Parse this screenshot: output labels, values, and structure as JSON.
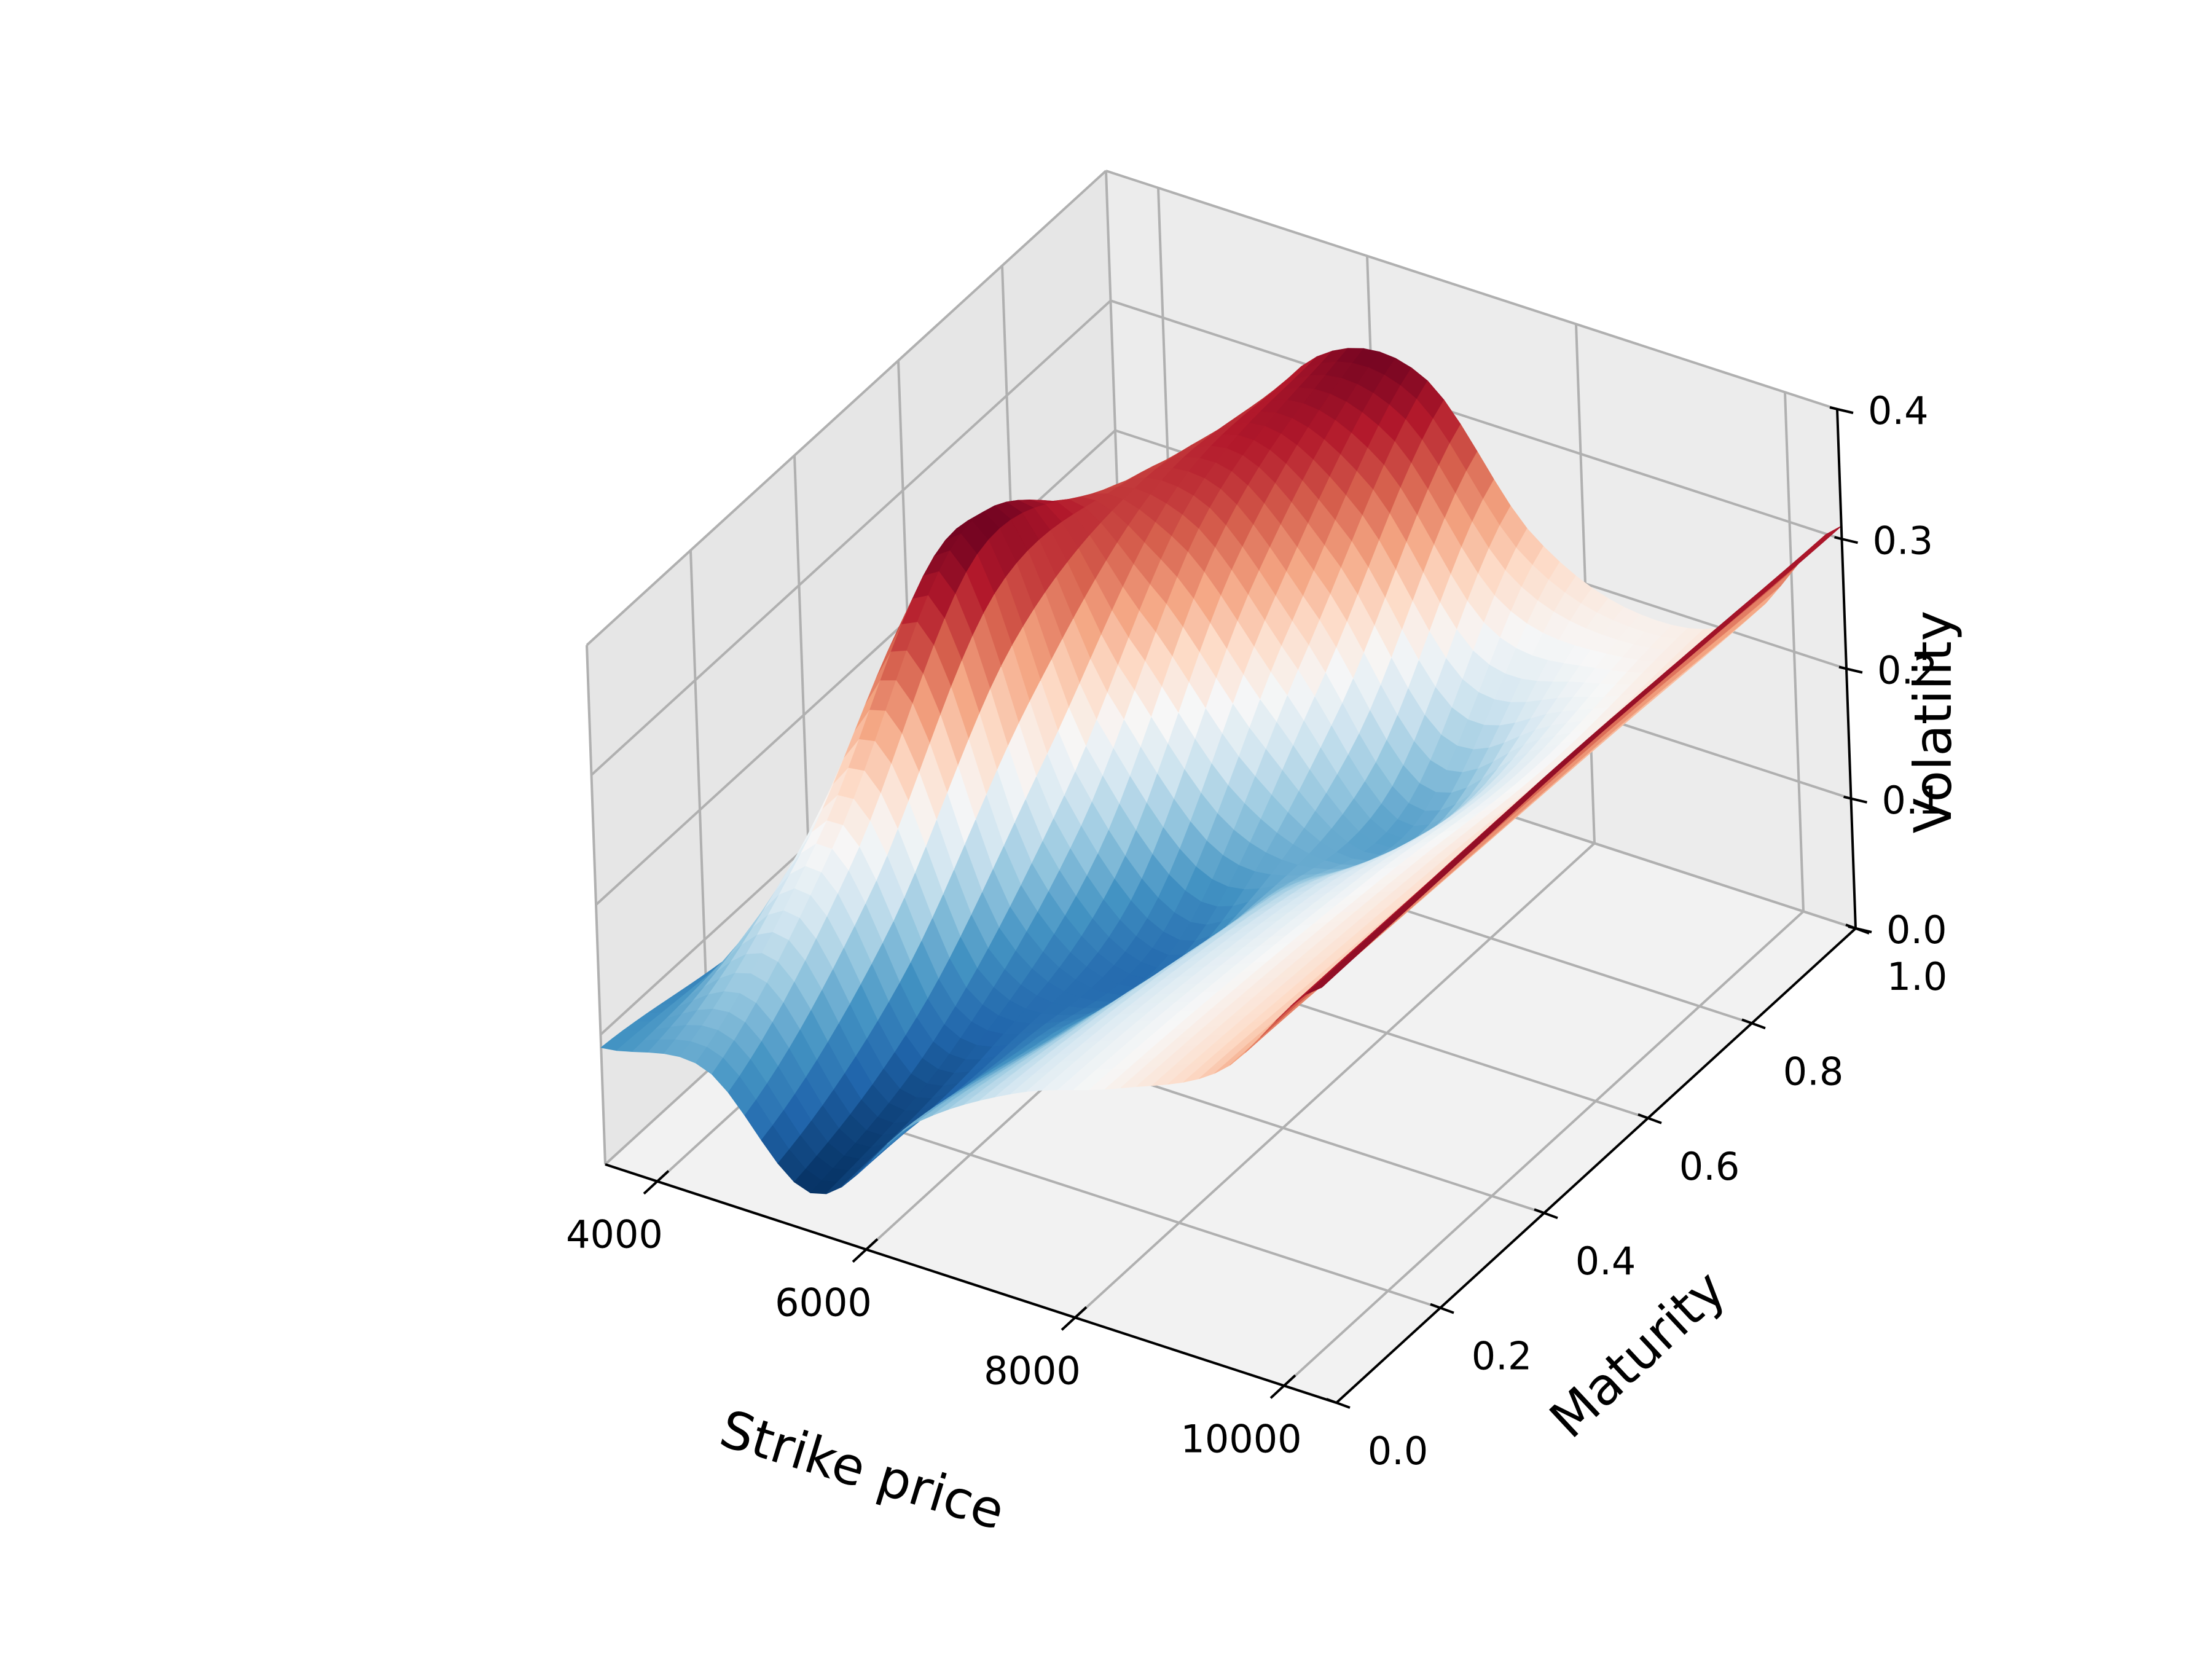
{
  "chart_data": {
    "type": "surface3d",
    "title": "",
    "xlabel": "Strike price",
    "ylabel": "Maturity",
    "zlabel": "Volatility",
    "xlim": [
      3500,
      10500
    ],
    "ylim": [
      0.0,
      1.0
    ],
    "zlim": [
      0.0,
      0.4
    ],
    "x_ticks": [
      4000,
      6000,
      8000,
      10000
    ],
    "y_ticks": [
      0.0,
      0.2,
      0.4,
      0.6,
      0.8,
      1.0
    ],
    "z_ticks": [
      0.0,
      0.1,
      0.2,
      0.3,
      0.4
    ],
    "x_tick_labels": [
      "4000",
      "6000",
      "8000",
      "10000"
    ],
    "y_tick_labels": [
      "0.0",
      "0.2",
      "0.4",
      "0.6",
      "0.8",
      "1.0"
    ],
    "z_tick_labels": [
      "0.0",
      "0.1",
      "0.2",
      "0.3",
      "0.4"
    ],
    "colormap": "RdBu_r",
    "grid": true,
    "strike": [
      3500,
      4500,
      5500,
      6500,
      7500,
      8500,
      9500,
      10500
    ],
    "maturity": [
      0.0,
      0.25,
      0.5,
      0.75,
      1.0
    ],
    "volatility": [
      [
        0.09,
        0.1,
        0.03,
        0.11,
        0.16,
        0.19,
        0.23,
        0.32
      ],
      [
        0.07,
        0.19,
        0.06,
        0.085,
        0.15,
        0.185,
        0.225,
        0.32
      ],
      [
        0.06,
        0.33,
        0.15,
        0.07,
        0.13,
        0.175,
        0.22,
        0.32
      ],
      [
        0.06,
        0.26,
        0.285,
        0.2,
        0.1,
        0.16,
        0.215,
        0.315
      ],
      [
        0.06,
        0.2,
        0.31,
        0.32,
        0.225,
        0.19,
        0.21,
        0.31
      ]
    ]
  }
}
